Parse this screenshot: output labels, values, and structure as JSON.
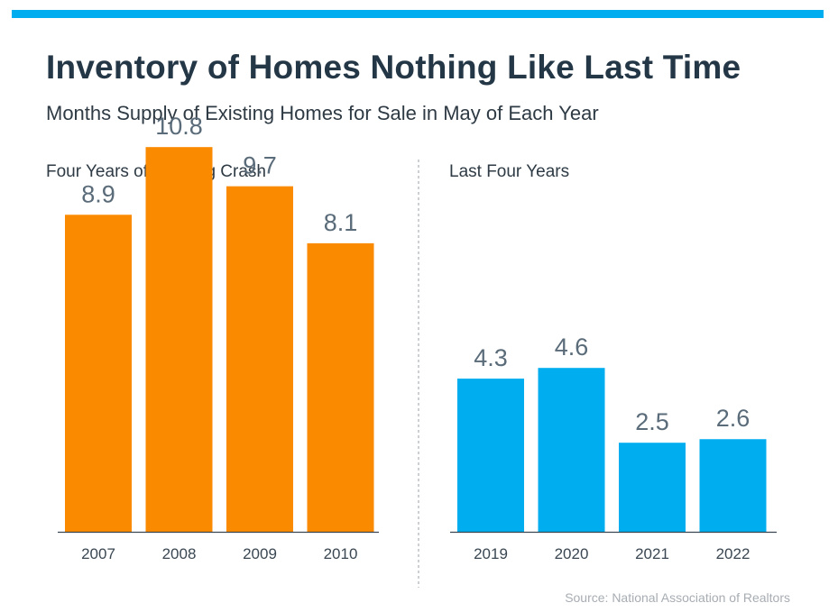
{
  "header": {
    "title": "Inventory of Homes Nothing Like Last Time",
    "subtitle": "Months Supply of Existing Homes for Sale in May of Each Year"
  },
  "colors": {
    "accent_bar": "#00aeef",
    "crash_bars": "#fa8a00",
    "recent_bars": "#00aeef",
    "value_label": "#5a6b79",
    "tick_label": "#3a4752",
    "divider": "#9aa1a7"
  },
  "chart_data": [
    {
      "type": "bar",
      "title": "Four Years of Housing Crash",
      "categories": [
        "2007",
        "2008",
        "2009",
        "2010"
      ],
      "values": [
        8.9,
        10.8,
        9.7,
        8.1
      ],
      "value_labels": [
        "8.9",
        "10.8",
        "9.7",
        "8.1"
      ],
      "ylim": [
        0,
        12.5
      ],
      "grid": false,
      "color": "#fa8a00"
    },
    {
      "type": "bar",
      "title": "Last Four Years",
      "categories": [
        "2019",
        "2020",
        "2021",
        "2022"
      ],
      "values": [
        4.3,
        4.6,
        2.5,
        2.6
      ],
      "value_labels": [
        "4.3",
        "4.6",
        "2.5",
        "2.6"
      ],
      "ylim": [
        0,
        12.5
      ],
      "grid": false,
      "color": "#00aeef"
    }
  ],
  "footer": {
    "source": "Source: National Association of Realtors"
  }
}
